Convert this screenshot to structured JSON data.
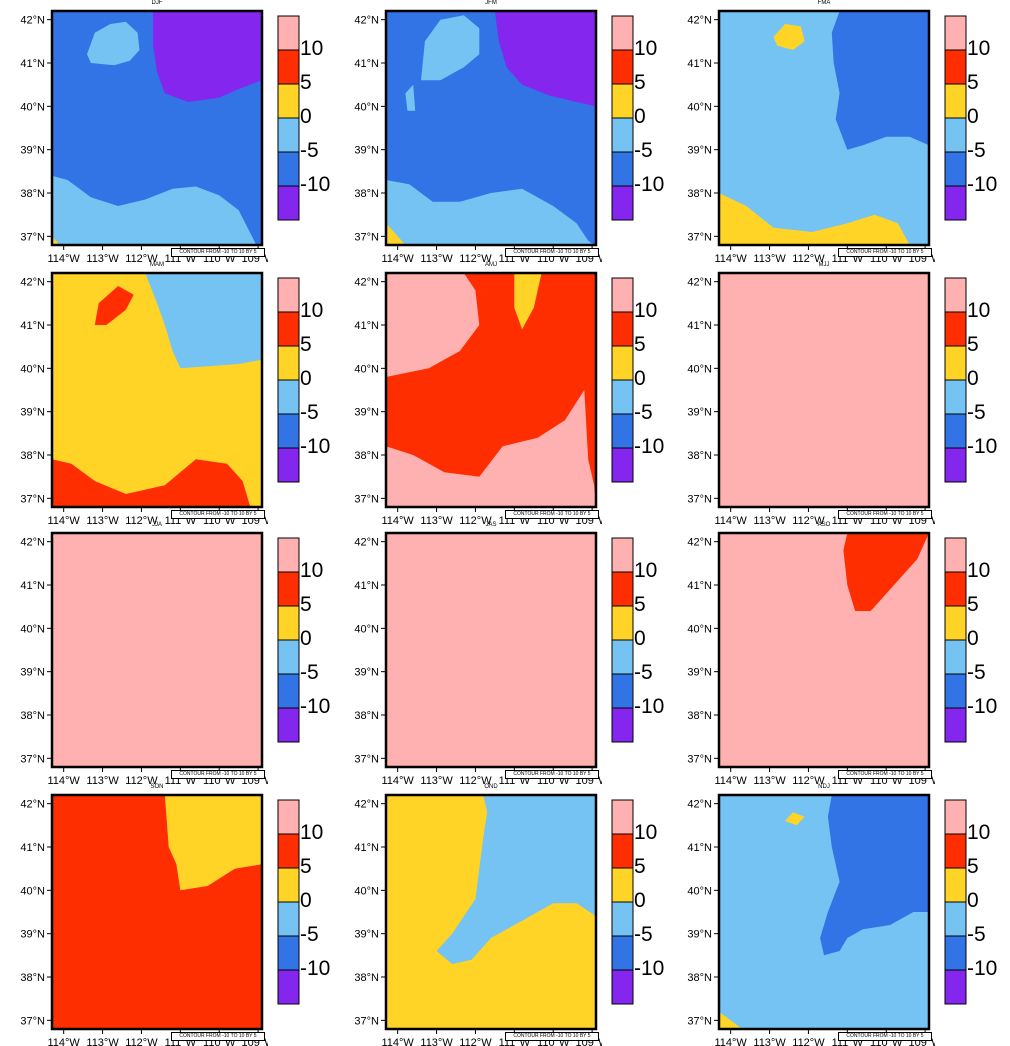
{
  "figure": {
    "info_label": "CONTOUR FROM -10 TO 10 BY 5",
    "lat_labels": [
      "42°N",
      "41°N",
      "40°N",
      "39°N",
      "38°N",
      "37°N"
    ],
    "lat_values": [
      42,
      41,
      40,
      39,
      38,
      37
    ],
    "lon_labels": [
      "114°W",
      "113°W",
      "112°W",
      "111°W",
      "110°W",
      "109°W"
    ],
    "lon_values": [
      -114,
      -113,
      -112,
      -111,
      -110,
      -109
    ],
    "extent": {
      "lon_min": -114.3,
      "lon_max": -108.9,
      "lat_min": 36.8,
      "lat_max": 42.2
    },
    "colorbar": {
      "tick_labels": [
        "10",
        "5",
        "0",
        "-5",
        "-10"
      ],
      "bins": [
        "> 10",
        "5 to 10",
        "0 to 5",
        "-5 to 0",
        "-10 to -5",
        "< -10"
      ],
      "colors": [
        "#ffb0b0",
        "#ff2e00",
        "#ffd426",
        "#74c3f2",
        "#3273e6",
        "#8426ee"
      ]
    }
  },
  "panels": [
    {
      "title": "DJF",
      "background": "#3273e6",
      "regions": [
        {
          "color": "#8426ee",
          "points": [
            [
              -111.7,
              42.2
            ],
            [
              -108.9,
              42.2
            ],
            [
              -108.9,
              40.6
            ],
            [
              -109.5,
              40.4
            ],
            [
              -110,
              40.2
            ],
            [
              -110.8,
              40.1
            ],
            [
              -111.4,
              40.3
            ],
            [
              -111.6,
              40.8
            ],
            [
              -111.7,
              41.4
            ]
          ]
        },
        {
          "color": "#74c3f2",
          "points": [
            [
              -113.4,
              41.2
            ],
            [
              -113.2,
              41.7
            ],
            [
              -112.8,
              41.9
            ],
            [
              -112.4,
              41.95
            ],
            [
              -112.1,
              41.7
            ],
            [
              -112.05,
              41.3
            ],
            [
              -112.3,
              41.05
            ],
            [
              -112.7,
              40.95
            ],
            [
              -113.3,
              41.0
            ]
          ]
        },
        {
          "color": "#74c3f2",
          "points": [
            [
              -114.3,
              38.4
            ],
            [
              -113.9,
              38.3
            ],
            [
              -113.3,
              37.9
            ],
            [
              -112.6,
              37.7
            ],
            [
              -111.9,
              37.85
            ],
            [
              -111.2,
              38.1
            ],
            [
              -110.6,
              38.15
            ],
            [
              -110.0,
              37.95
            ],
            [
              -109.5,
              37.6
            ],
            [
              -109.1,
              36.9
            ],
            [
              -109.05,
              36.8
            ],
            [
              -114.3,
              36.8
            ]
          ]
        },
        {
          "color": "#ffd426",
          "points": [
            [
              -114.3,
              37.0
            ],
            [
              -114.1,
              36.8
            ],
            [
              -114.3,
              36.8
            ]
          ]
        }
      ]
    },
    {
      "title": "JFM",
      "background": "#3273e6",
      "regions": [
        {
          "color": "#8426ee",
          "points": [
            [
              -111.5,
              42.2
            ],
            [
              -108.9,
              42.2
            ],
            [
              -108.9,
              40.0
            ],
            [
              -109.4,
              40.1
            ],
            [
              -110.1,
              40.25
            ],
            [
              -110.8,
              40.5
            ],
            [
              -111.2,
              40.9
            ],
            [
              -111.4,
              41.5
            ]
          ]
        },
        {
          "color": "#74c3f2",
          "points": [
            [
              -113.4,
              40.6
            ],
            [
              -113.3,
              41.5
            ],
            [
              -112.9,
              42.0
            ],
            [
              -112.3,
              42.1
            ],
            [
              -111.9,
              41.8
            ],
            [
              -111.9,
              41.2
            ],
            [
              -112.3,
              40.9
            ],
            [
              -112.9,
              40.6
            ]
          ]
        },
        {
          "color": "#74c3f2",
          "points": [
            [
              -113.8,
              40.3
            ],
            [
              -113.6,
              40.5
            ],
            [
              -113.55,
              39.9
            ],
            [
              -113.75,
              39.9
            ]
          ]
        },
        {
          "color": "#74c3f2",
          "points": [
            [
              -114.3,
              38.3
            ],
            [
              -113.7,
              38.2
            ],
            [
              -113.1,
              37.8
            ],
            [
              -112.4,
              37.8
            ],
            [
              -111.6,
              38.0
            ],
            [
              -110.8,
              38.1
            ],
            [
              -110.0,
              37.7
            ],
            [
              -109.4,
              37.3
            ],
            [
              -109.1,
              36.9
            ],
            [
              -108.95,
              36.8
            ],
            [
              -114.3,
              36.8
            ]
          ]
        },
        {
          "color": "#ffd426",
          "points": [
            [
              -114.3,
              37.3
            ],
            [
              -113.8,
              36.8
            ],
            [
              -114.3,
              36.8
            ]
          ]
        }
      ]
    },
    {
      "title": "FMA",
      "background": "#74c3f2",
      "regions": [
        {
          "color": "#3273e6",
          "points": [
            [
              -111.2,
              42.2
            ],
            [
              -108.9,
              42.2
            ],
            [
              -108.9,
              39.1
            ],
            [
              -109.4,
              39.3
            ],
            [
              -110.0,
              39.3
            ],
            [
              -110.6,
              39.1
            ],
            [
              -111.0,
              39.0
            ],
            [
              -111.3,
              39.7
            ],
            [
              -111.2,
              40.3
            ],
            [
              -111.35,
              41.0
            ],
            [
              -111.4,
              41.7
            ]
          ]
        },
        {
          "color": "#ffd426",
          "points": [
            [
              -112.9,
              41.6
            ],
            [
              -112.6,
              41.9
            ],
            [
              -112.2,
              41.85
            ],
            [
              -112.1,
              41.5
            ],
            [
              -112.4,
              41.3
            ],
            [
              -112.8,
              41.4
            ]
          ]
        },
        {
          "color": "#ffd426",
          "points": [
            [
              -114.3,
              38.0
            ],
            [
              -113.6,
              37.7
            ],
            [
              -112.9,
              37.2
            ],
            [
              -111.9,
              37.1
            ],
            [
              -111.0,
              37.3
            ],
            [
              -110.3,
              37.5
            ],
            [
              -109.7,
              37.3
            ],
            [
              -109.4,
              36.8
            ],
            [
              -114.3,
              36.8
            ]
          ]
        }
      ]
    },
    {
      "title": "MAM",
      "background": "#ffd426",
      "regions": [
        {
          "color": "#74c3f2",
          "points": [
            [
              -111.9,
              42.2
            ],
            [
              -108.9,
              42.2
            ],
            [
              -108.9,
              40.2
            ],
            [
              -109.5,
              40.1
            ],
            [
              -110.3,
              40.05
            ],
            [
              -111.0,
              40.0
            ],
            [
              -111.2,
              40.4
            ],
            [
              -111.4,
              41.0
            ],
            [
              -111.6,
              41.5
            ]
          ]
        },
        {
          "color": "#ff2e00",
          "points": [
            [
              -113.2,
              41.0
            ],
            [
              -113.1,
              41.5
            ],
            [
              -112.6,
              41.9
            ],
            [
              -112.2,
              41.7
            ],
            [
              -112.4,
              41.35
            ],
            [
              -112.9,
              41.0
            ]
          ]
        },
        {
          "color": "#ff2e00",
          "points": [
            [
              -114.3,
              37.9
            ],
            [
              -113.8,
              37.8
            ],
            [
              -113.2,
              37.4
            ],
            [
              -112.4,
              37.1
            ],
            [
              -111.4,
              37.3
            ],
            [
              -110.6,
              37.9
            ],
            [
              -109.8,
              37.8
            ],
            [
              -109.4,
              37.4
            ],
            [
              -109.2,
              36.8
            ],
            [
              -114.3,
              36.8
            ]
          ]
        }
      ]
    },
    {
      "title": "AMJ",
      "background": "#ff2e00",
      "regions": [
        {
          "color": "#ffb0b0",
          "points": [
            [
              -114.3,
              42.2
            ],
            [
              -112.3,
              42.2
            ],
            [
              -112.0,
              41.8
            ],
            [
              -111.9,
              41.0
            ],
            [
              -112.4,
              40.4
            ],
            [
              -113.2,
              40.0
            ],
            [
              -114.3,
              39.8
            ]
          ]
        },
        {
          "color": "#ffd426",
          "points": [
            [
              -111.0,
              42.2
            ],
            [
              -110.3,
              42.2
            ],
            [
              -110.5,
              41.4
            ],
            [
              -110.8,
              40.9
            ],
            [
              -111.0,
              41.4
            ]
          ]
        },
        {
          "color": "#ffb0b0",
          "points": [
            [
              -114.3,
              38.2
            ],
            [
              -113.6,
              38.0
            ],
            [
              -112.8,
              37.6
            ],
            [
              -111.9,
              37.5
            ],
            [
              -111.3,
              38.2
            ],
            [
              -110.4,
              38.4
            ],
            [
              -109.7,
              38.8
            ],
            [
              -109.2,
              39.5
            ],
            [
              -109.1,
              37.9
            ],
            [
              -108.95,
              37.3
            ],
            [
              -108.9,
              36.8
            ],
            [
              -114.3,
              36.8
            ]
          ]
        }
      ]
    },
    {
      "title": "MJJ",
      "background": "#ffb0b0",
      "regions": []
    },
    {
      "title": "JJA",
      "background": "#ffb0b0",
      "regions": []
    },
    {
      "title": "JAS",
      "background": "#ffb0b0",
      "regions": []
    },
    {
      "title": "ASO",
      "background": "#ffb0b0",
      "regions": [
        {
          "color": "#ff2e00",
          "points": [
            [
              -111.0,
              42.2
            ],
            [
              -108.9,
              42.2
            ],
            [
              -109.2,
              41.6
            ],
            [
              -109.8,
              41.0
            ],
            [
              -110.4,
              40.4
            ],
            [
              -110.8,
              40.4
            ],
            [
              -111.0,
              41.0
            ],
            [
              -111.1,
              41.8
            ]
          ]
        }
      ]
    },
    {
      "title": "SON",
      "background": "#ff2e00",
      "regions": [
        {
          "color": "#ffd426",
          "points": [
            [
              -111.4,
              42.2
            ],
            [
              -108.9,
              42.2
            ],
            [
              -108.9,
              40.6
            ],
            [
              -109.6,
              40.5
            ],
            [
              -110.3,
              40.1
            ],
            [
              -111.0,
              40.0
            ],
            [
              -111.1,
              40.6
            ],
            [
              -111.3,
              41.0
            ]
          ]
        }
      ]
    },
    {
      "title": "OND",
      "background": "#ffd426",
      "regions": [
        {
          "color": "#74c3f2",
          "points": [
            [
              -111.8,
              42.2
            ],
            [
              -108.9,
              42.2
            ],
            [
              -108.9,
              39.4
            ],
            [
              -109.4,
              39.7
            ],
            [
              -110.0,
              39.7
            ],
            [
              -110.8,
              39.3
            ],
            [
              -111.6,
              38.9
            ],
            [
              -112.1,
              38.4
            ],
            [
              -112.6,
              38.3
            ],
            [
              -113.0,
              38.6
            ],
            [
              -112.6,
              39.0
            ],
            [
              -112.0,
              39.8
            ],
            [
              -111.9,
              40.5
            ],
            [
              -111.8,
              41.2
            ],
            [
              -111.7,
              41.8
            ]
          ]
        }
      ]
    },
    {
      "title": "NDJ",
      "background": "#74c3f2",
      "regions": [
        {
          "color": "#3273e6",
          "points": [
            [
              -111.4,
              42.2
            ],
            [
              -108.9,
              42.2
            ],
            [
              -108.9,
              39.5
            ],
            [
              -109.3,
              39.5
            ],
            [
              -109.9,
              39.2
            ],
            [
              -110.6,
              39.1
            ],
            [
              -111.0,
              38.9
            ],
            [
              -111.2,
              38.6
            ],
            [
              -111.6,
              38.5
            ],
            [
              -111.7,
              38.9
            ],
            [
              -111.5,
              39.5
            ],
            [
              -111.2,
              40.2
            ],
            [
              -111.4,
              41.0
            ],
            [
              -111.5,
              41.7
            ]
          ]
        },
        {
          "color": "#ffd426",
          "points": [
            [
              -112.6,
              41.6
            ],
            [
              -112.4,
              41.8
            ],
            [
              -112.1,
              41.7
            ],
            [
              -112.3,
              41.5
            ]
          ]
        },
        {
          "color": "#ffd426",
          "points": [
            [
              -114.3,
              37.2
            ],
            [
              -113.7,
              36.8
            ],
            [
              -114.3,
              36.8
            ]
          ]
        }
      ]
    }
  ]
}
